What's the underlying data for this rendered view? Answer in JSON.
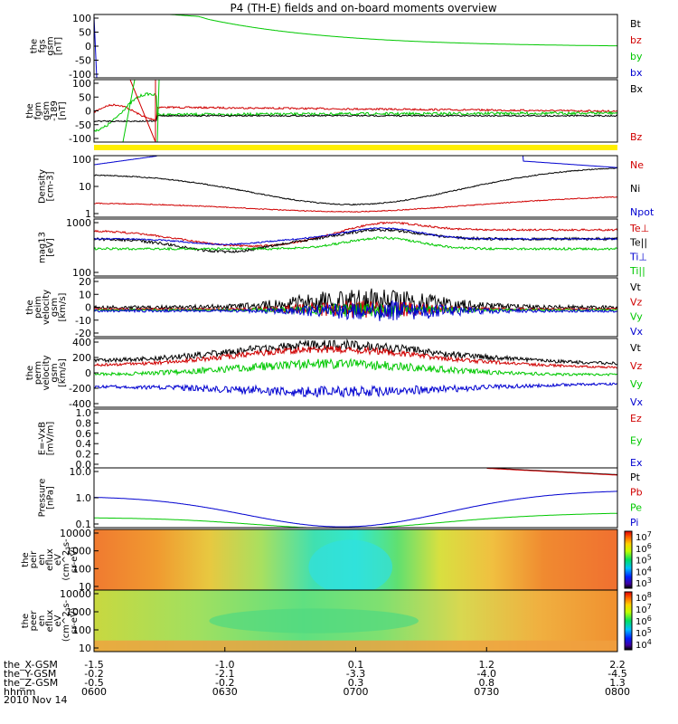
{
  "title": "P4 (TH-E) fields and on-board moments overview",
  "date_label": "2010 Nov 14",
  "colors": {
    "black": "#000000",
    "red": "#d00000",
    "green": "#00c800",
    "blue": "#0000d0",
    "yellow": "#ffee00"
  },
  "chart_data": {
    "type": "line",
    "x_axis": {
      "rows": [
        {
          "label": "the_X-GSM",
          "values": [
            "-1.5",
            "-1.0",
            "0.1",
            "1.2",
            "2.2"
          ]
        },
        {
          "label": "the_Y-GSM",
          "values": [
            "-0.2",
            "-2.1",
            "-3.3",
            "-4.0",
            "-4.5"
          ]
        },
        {
          "label": "the_Z-GSM",
          "values": [
            "-0.5",
            "-0.2",
            "0.3",
            "0.8",
            "1.3"
          ]
        },
        {
          "label": "hhmm",
          "values": [
            "0600",
            "0630",
            "0700",
            "0730",
            "0800"
          ]
        }
      ]
    },
    "panels": [
      {
        "id": "fgs",
        "ylabel": [
          "the",
          "fgs",
          "gsm",
          "[nT]"
        ],
        "yticks": [
          "100",
          "50",
          "0",
          "-50",
          "-100"
        ],
        "ylim": [
          -100,
          100
        ],
        "legend": [
          {
            "label": "Bt",
            "color": "#000000"
          },
          {
            "label": "bz",
            "color": "#d00000"
          },
          {
            "label": "by",
            "color": "#00c800"
          },
          {
            "label": "bx",
            "color": "#0000d0"
          }
        ]
      },
      {
        "id": "fgm",
        "ylabel": [
          "the",
          "fgm",
          "gsm",
          "-189",
          "[nT]"
        ],
        "yticks": [
          "100",
          "50",
          "0",
          "-50",
          "-100"
        ],
        "ylim": [
          -120,
          120
        ],
        "legend": [
          {
            "label": "Bx",
            "color": "#000000"
          },
          {
            "label": "Bz",
            "color": "#d00000"
          }
        ]
      },
      {
        "id": "density",
        "ylabel": [
          "Density",
          "[cm-3]"
        ],
        "yticks": [
          "100",
          "10",
          "1"
        ],
        "log": true,
        "legend": [
          {
            "label": "Ne",
            "color": "#d00000"
          },
          {
            "label": "Ni",
            "color": "#000000"
          },
          {
            "label": "Npot",
            "color": "#0000d0"
          }
        ]
      },
      {
        "id": "temperature",
        "ylabel": [
          "mag13",
          "[eV]"
        ],
        "yticks": [
          "1000",
          "100"
        ],
        "log": true,
        "legend": [
          {
            "label": "Te⊥",
            "color": "#d00000"
          },
          {
            "label": "Te||",
            "color": "#000000"
          },
          {
            "label": "Ti⊥",
            "color": "#0000d0"
          },
          {
            "label": "Ti||",
            "color": "#00c800"
          }
        ]
      },
      {
        "id": "peim_velocity",
        "ylabel": [
          "the",
          "peim",
          "velocity",
          "gsm",
          "[km/s]"
        ],
        "yticks": [
          "20",
          "10",
          "0",
          "-10",
          "-20"
        ],
        "ylim": [
          -20,
          20
        ],
        "legend": [
          {
            "label": "Vt",
            "color": "#000000"
          },
          {
            "label": "Vz",
            "color": "#d00000"
          },
          {
            "label": "Vy",
            "color": "#00c800"
          },
          {
            "label": "Vx",
            "color": "#0000d0"
          }
        ]
      },
      {
        "id": "perm_velocity",
        "ylabel": [
          "the",
          "perm",
          "velocity",
          "gsm",
          "[km/s]"
        ],
        "yticks": [
          "400",
          "200",
          "0",
          "-200",
          "-400"
        ],
        "ylim": [
          -400,
          400
        ],
        "legend": [
          {
            "label": "Vt",
            "color": "#000000"
          },
          {
            "label": "Vz",
            "color": "#d00000"
          },
          {
            "label": "Vy",
            "color": "#00c800"
          },
          {
            "label": "Vx",
            "color": "#0000d0"
          }
        ]
      },
      {
        "id": "efield",
        "ylabel": [
          "E=-VxB",
          "[mV/m]"
        ],
        "yticks": [
          "1.0",
          "0.8",
          "0.6",
          "0.4",
          "0.2",
          "0.0"
        ],
        "ylim": [
          0,
          1
        ],
        "legend": [
          {
            "label": "Ez",
            "color": "#d00000"
          },
          {
            "label": "Ey",
            "color": "#00c800"
          },
          {
            "label": "Ex",
            "color": "#0000d0"
          }
        ]
      },
      {
        "id": "pressure",
        "ylabel": [
          "Pressure",
          "[nPa]"
        ],
        "yticks": [
          "10.0",
          "1.0",
          "0.1"
        ],
        "log": true,
        "legend": [
          {
            "label": "Pt",
            "color": "#000000"
          },
          {
            "label": "Pb",
            "color": "#d00000"
          },
          {
            "label": "Pe",
            "color": "#00c800"
          },
          {
            "label": "Pi",
            "color": "#0000d0"
          }
        ]
      },
      {
        "id": "ion_spectrogram",
        "type": "heatmap",
        "ylabel": [
          "the",
          "peir",
          "en",
          "eflux",
          "eV",
          "(cm^2-s-",
          "sr-eV)"
        ],
        "yticks": [
          "10000",
          "1000",
          "100",
          "10"
        ],
        "colorbar_ticks": [
          "10^7",
          "10^6",
          "10^5",
          "10^4",
          "10^3"
        ]
      },
      {
        "id": "electron_spectrogram",
        "type": "heatmap",
        "ylabel": [
          "the",
          "peer",
          "en",
          "eflux",
          "eV",
          "(cm^2-s-",
          "sr-eV)"
        ],
        "yticks": [
          "10000",
          "1000",
          "100",
          "10"
        ],
        "colorbar_ticks": [
          "10^8",
          "10^7",
          "10^6",
          "10^5",
          "10^4"
        ]
      }
    ]
  }
}
